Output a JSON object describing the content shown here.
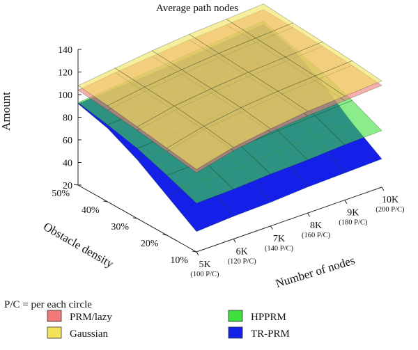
{
  "chart_data": {
    "type": "surface3d",
    "title": "Average path nodes",
    "zlabel": "Amount",
    "ylabel": "Obstacle density",
    "xlabel": "Number of nodes",
    "zlim": [
      20,
      140
    ],
    "z_ticks": [
      "140",
      "120",
      "100",
      "80",
      "60",
      "40",
      "20"
    ],
    "density_ticks": [
      "50%",
      "40%",
      "30%",
      "20%",
      "10%"
    ],
    "node_ticks": [
      {
        "main": "5K",
        "sub": "(100 P/C)"
      },
      {
        "main": "6K",
        "sub": "(120 P/C)"
      },
      {
        "main": "7K",
        "sub": "(140 P/C)"
      },
      {
        "main": "8K",
        "sub": "(160 P/C)"
      },
      {
        "main": "9K",
        "sub": "(180 P/C)"
      },
      {
        "main": "10K",
        "sub": "(200 P/C)"
      }
    ],
    "nodes": [
      "5K",
      "6K",
      "7K",
      "8K",
      "9K",
      "10K"
    ],
    "density": [
      "10%",
      "20%",
      "30%",
      "40%",
      "50%"
    ],
    "series": [
      {
        "name": "TR-PRM",
        "color": "#1420e8",
        "z": [
          [
            38,
            40,
            41,
            43,
            44,
            45
          ],
          [
            55,
            57,
            58,
            60,
            61,
            62
          ],
          [
            72,
            74,
            76,
            78,
            80,
            82
          ],
          [
            85,
            87,
            89,
            92,
            95,
            98
          ],
          [
            92,
            94,
            96,
            99,
            102,
            105
          ]
        ]
      },
      {
        "name": "HPPRM",
        "color": "#3ee03e",
        "z": [
          [
            63,
            64,
            66,
            67,
            69,
            70
          ],
          [
            73,
            74,
            76,
            78,
            80,
            82
          ],
          [
            82,
            84,
            86,
            88,
            90,
            92
          ],
          [
            88,
            90,
            92,
            95,
            97,
            100
          ],
          [
            93,
            96,
            99,
            102,
            105,
            108
          ]
        ]
      },
      {
        "name": "PRM/lazy",
        "color": "#f07878",
        "z": [
          [
            90,
            98,
            103,
            106,
            108,
            110
          ],
          [
            94,
            102,
            106,
            109,
            111,
            113
          ],
          [
            98,
            104,
            108,
            111,
            113,
            115
          ],
          [
            101,
            106,
            110,
            113,
            115,
            117
          ],
          [
            104,
            108,
            111,
            114,
            116,
            118
          ]
        ]
      },
      {
        "name": "Gaussian",
        "color": "#f2e25c",
        "z": [
          [
            93,
            101,
            106,
            110,
            112,
            114
          ],
          [
            97,
            105,
            110,
            113,
            115,
            117
          ],
          [
            101,
            108,
            112,
            115,
            117,
            119
          ],
          [
            105,
            110,
            114,
            117,
            119,
            121
          ],
          [
            108,
            112,
            116,
            119,
            121,
            123
          ]
        ]
      }
    ],
    "legend": {
      "note": "P/C = per each circle",
      "items": [
        {
          "label": "PRM/lazy",
          "color": "#f07878"
        },
        {
          "label": "HPPRM",
          "color": "#3ee03e"
        },
        {
          "label": "Gaussian",
          "color": "#f2e25c"
        },
        {
          "label": "TR-PRM",
          "color": "#1420e8"
        }
      ],
      "placement": "bottom"
    },
    "grid": true
  }
}
